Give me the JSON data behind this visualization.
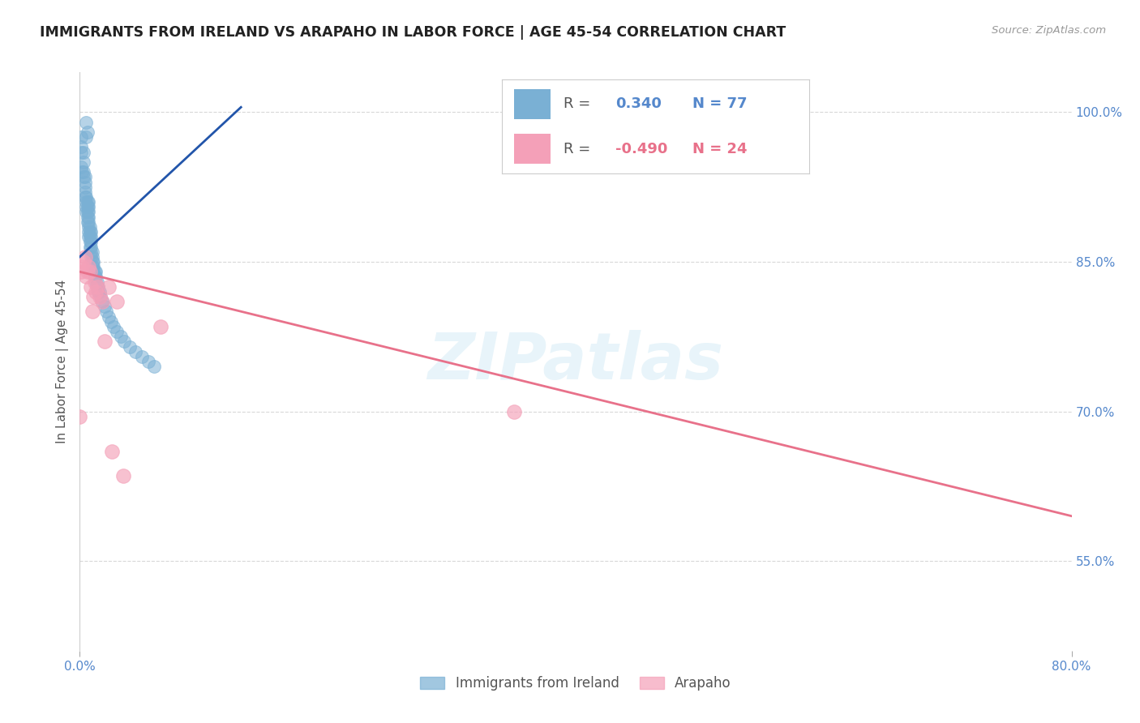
{
  "title": "IMMIGRANTS FROM IRELAND VS ARAPAHO IN LABOR FORCE | AGE 45-54 CORRELATION CHART",
  "source": "Source: ZipAtlas.com",
  "ylabel": "In Labor Force | Age 45-54",
  "watermark": "ZIPatlas",
  "legend_label_blue": "Immigrants from Ireland",
  "legend_label_pink": "Arapaho",
  "xmin": 0.0,
  "xmax": 0.8,
  "ymin": 0.46,
  "ymax": 1.04,
  "yticks": [
    0.55,
    0.7,
    0.85,
    1.0
  ],
  "ytick_labels": [
    "55.0%",
    "70.0%",
    "85.0%",
    "100.0%"
  ],
  "blue_scatter_x": [
    0.005,
    0.005,
    0.006,
    0.001,
    0.001,
    0.001,
    0.001,
    0.002,
    0.003,
    0.003,
    0.003,
    0.003,
    0.004,
    0.004,
    0.004,
    0.004,
    0.004,
    0.005,
    0.005,
    0.005,
    0.005,
    0.006,
    0.006,
    0.006,
    0.006,
    0.006,
    0.007,
    0.007,
    0.007,
    0.007,
    0.007,
    0.007,
    0.007,
    0.007,
    0.008,
    0.008,
    0.008,
    0.008,
    0.008,
    0.009,
    0.009,
    0.009,
    0.009,
    0.009,
    0.009,
    0.01,
    0.01,
    0.01,
    0.01,
    0.011,
    0.011,
    0.011,
    0.012,
    0.012,
    0.013,
    0.013,
    0.013,
    0.014,
    0.014,
    0.015,
    0.015,
    0.016,
    0.017,
    0.018,
    0.02,
    0.021,
    0.023,
    0.025,
    0.027,
    0.03,
    0.033,
    0.036,
    0.04,
    0.045,
    0.05,
    0.055,
    0.06
  ],
  "blue_scatter_y": [
    0.975,
    0.99,
    0.98,
    0.945,
    0.96,
    0.965,
    0.975,
    0.94,
    0.935,
    0.94,
    0.95,
    0.96,
    0.915,
    0.92,
    0.925,
    0.93,
    0.935,
    0.9,
    0.905,
    0.91,
    0.915,
    0.89,
    0.895,
    0.9,
    0.905,
    0.91,
    0.875,
    0.88,
    0.885,
    0.89,
    0.895,
    0.9,
    0.905,
    0.91,
    0.865,
    0.87,
    0.875,
    0.88,
    0.885,
    0.855,
    0.86,
    0.865,
    0.87,
    0.875,
    0.88,
    0.845,
    0.85,
    0.855,
    0.86,
    0.84,
    0.845,
    0.85,
    0.835,
    0.84,
    0.83,
    0.835,
    0.84,
    0.825,
    0.83,
    0.82,
    0.825,
    0.82,
    0.815,
    0.81,
    0.805,
    0.8,
    0.795,
    0.79,
    0.785,
    0.78,
    0.775,
    0.77,
    0.765,
    0.76,
    0.755,
    0.75,
    0.745
  ],
  "pink_scatter_x": [
    0.0,
    0.001,
    0.002,
    0.003,
    0.004,
    0.005,
    0.006,
    0.007,
    0.008,
    0.009,
    0.01,
    0.011,
    0.012,
    0.013,
    0.014,
    0.016,
    0.018,
    0.02,
    0.023,
    0.026,
    0.03,
    0.035,
    0.065,
    0.35
  ],
  "pink_scatter_y": [
    0.695,
    0.84,
    0.845,
    0.85,
    0.855,
    0.835,
    0.84,
    0.845,
    0.84,
    0.825,
    0.8,
    0.815,
    0.83,
    0.82,
    0.825,
    0.815,
    0.81,
    0.77,
    0.825,
    0.66,
    0.81,
    0.635,
    0.785,
    0.7
  ],
  "blue_line_x": [
    0.0,
    0.13
  ],
  "blue_line_y": [
    0.855,
    1.005
  ],
  "pink_line_x": [
    0.0,
    0.8
  ],
  "pink_line_y": [
    0.84,
    0.595
  ],
  "blue_color": "#7ab0d4",
  "pink_color": "#f4a0b8",
  "blue_line_color": "#2255aa",
  "pink_line_color": "#e8718a",
  "background_color": "#ffffff",
  "grid_color": "#d8d8d8"
}
